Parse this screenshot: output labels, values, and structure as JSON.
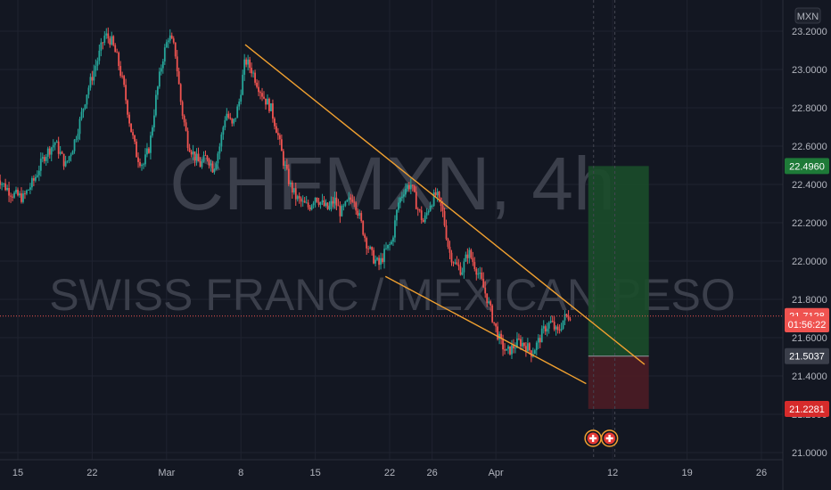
{
  "chart_data": {
    "type": "candlestick",
    "title": "CHFMXN, 4h",
    "subtitle": "SWISS FRANC / MEXICAN PESO",
    "currency": "MXN",
    "ylim": [
      21.0,
      23.25
    ],
    "y_ticks": [
      "23.2000",
      "23.0000",
      "22.8000",
      "22.6000",
      "22.4000",
      "22.2000",
      "22.0000",
      "21.8000",
      "21.6000",
      "21.4000",
      "21.2000",
      "21.0000"
    ],
    "x_ticks": [
      {
        "label": "15",
        "day": 15
      },
      {
        "label": "22",
        "day": 22
      },
      {
        "label": "Mar",
        "day": 29
      },
      {
        "label": "8",
        "day": 36
      },
      {
        "label": "15",
        "day": 43
      },
      {
        "label": "22",
        "day": 50
      },
      {
        "label": "26",
        "day": 54
      },
      {
        "label": "Apr",
        "day": 60
      },
      {
        "label": "12",
        "day": 71
      },
      {
        "label": "19",
        "day": 78
      },
      {
        "label": "26",
        "day": 85
      }
    ],
    "price_path": [
      [
        13.0,
        22.45
      ],
      [
        13.6,
        22.4
      ],
      [
        14.5,
        22.35
      ],
      [
        15.5,
        22.33
      ],
      [
        16.5,
        22.42
      ],
      [
        17.5,
        22.55
      ],
      [
        18.5,
        22.62
      ],
      [
        19.5,
        22.5
      ],
      [
        20.2,
        22.6
      ],
      [
        20.8,
        22.72
      ],
      [
        21.5,
        22.88
      ],
      [
        22.5,
        23.05
      ],
      [
        23.2,
        23.18
      ],
      [
        23.8,
        23.15
      ],
      [
        24.4,
        23.05
      ],
      [
        25.0,
        22.9
      ],
      [
        25.6,
        22.7
      ],
      [
        26.2,
        22.55
      ],
      [
        26.8,
        22.5
      ],
      [
        27.4,
        22.6
      ],
      [
        28.0,
        22.85
      ],
      [
        28.6,
        23.05
      ],
      [
        29.2,
        23.18
      ],
      [
        29.8,
        23.1
      ],
      [
        30.4,
        22.8
      ],
      [
        31.0,
        22.62
      ],
      [
        31.6,
        22.55
      ],
      [
        32.2,
        22.5
      ],
      [
        32.8,
        22.55
      ],
      [
        33.4,
        22.48
      ],
      [
        34.0,
        22.6
      ],
      [
        34.6,
        22.78
      ],
      [
        35.2,
        22.7
      ],
      [
        35.8,
        22.82
      ],
      [
        36.4,
        23.05
      ],
      [
        37.0,
        23.0
      ],
      [
        37.6,
        22.92
      ],
      [
        38.2,
        22.85
      ],
      [
        38.8,
        22.8
      ],
      [
        39.4,
        22.68
      ],
      [
        40.0,
        22.52
      ],
      [
        40.6,
        22.4
      ],
      [
        41.2,
        22.33
      ],
      [
        41.8,
        22.3
      ],
      [
        42.4,
        22.28
      ],
      [
        43.0,
        22.34
      ],
      [
        43.6,
        22.3
      ],
      [
        44.2,
        22.27
      ],
      [
        44.8,
        22.32
      ],
      [
        45.4,
        22.25
      ],
      [
        46.0,
        22.3
      ],
      [
        46.6,
        22.34
      ],
      [
        47.2,
        22.22
      ],
      [
        47.8,
        22.1
      ],
      [
        48.4,
        22.02
      ],
      [
        49.0,
        21.98
      ],
      [
        49.6,
        22.05
      ],
      [
        50.2,
        22.1
      ],
      [
        50.8,
        22.3
      ],
      [
        51.4,
        22.38
      ],
      [
        52.0,
        22.4
      ],
      [
        52.6,
        22.28
      ],
      [
        53.2,
        22.2
      ],
      [
        53.8,
        22.3
      ],
      [
        54.4,
        22.35
      ],
      [
        55.0,
        22.25
      ],
      [
        55.6,
        22.05
      ],
      [
        56.2,
        21.98
      ],
      [
        56.8,
        21.95
      ],
      [
        57.4,
        22.05
      ],
      [
        58.0,
        21.98
      ],
      [
        58.6,
        21.9
      ],
      [
        59.2,
        21.8
      ],
      [
        59.8,
        21.68
      ],
      [
        60.4,
        21.58
      ],
      [
        61.0,
        21.52
      ],
      [
        61.6,
        21.55
      ],
      [
        62.2,
        21.58
      ],
      [
        62.8,
        21.56
      ],
      [
        63.4,
        21.52
      ],
      [
        64.0,
        21.58
      ],
      [
        64.6,
        21.65
      ],
      [
        65.2,
        21.68
      ],
      [
        65.8,
        21.62
      ],
      [
        66.4,
        21.7
      ],
      [
        67.0,
        21.72
      ]
    ],
    "trend_lines": [
      {
        "from": [
          36.4,
          23.13
        ],
        "to": [
          74.0,
          21.46
        ],
        "color": "#f0a030"
      },
      {
        "from": [
          49.6,
          21.92
        ],
        "to": [
          68.5,
          21.36
        ],
        "color": "#f0a030"
      }
    ],
    "position_tool": {
      "x_start": 68.7,
      "x_end": 74.4,
      "entry": 21.5037,
      "target": 22.496,
      "stop": 21.2281,
      "profit_color": "#1b4d2a",
      "loss_color": "#4d1c25"
    },
    "last_price": 21.7128,
    "price_tags": [
      {
        "label": "22.4960",
        "value": 22.496,
        "bg": "#1e7a38",
        "fg": "#ffffff"
      },
      {
        "label": "21.7128",
        "value": 21.7128,
        "bg": "#ef5350",
        "fg": "#ffffff"
      },
      {
        "label": "01:56:22",
        "value": 21.67,
        "bg": "#ef5350",
        "fg": "#ffffff"
      },
      {
        "label": "21.5037",
        "value": 21.5037,
        "bg": "#3a3e4a",
        "fg": "#ffffff"
      },
      {
        "label": "21.2281",
        "value": 21.2281,
        "bg": "#d62b2b",
        "fg": "#ffffff"
      }
    ],
    "grid": true,
    "colors": {
      "up": "#26a69a",
      "down": "#ef5350",
      "background": "#131722",
      "grid": "#1f2330",
      "axis_text": "#b2b5be"
    }
  }
}
